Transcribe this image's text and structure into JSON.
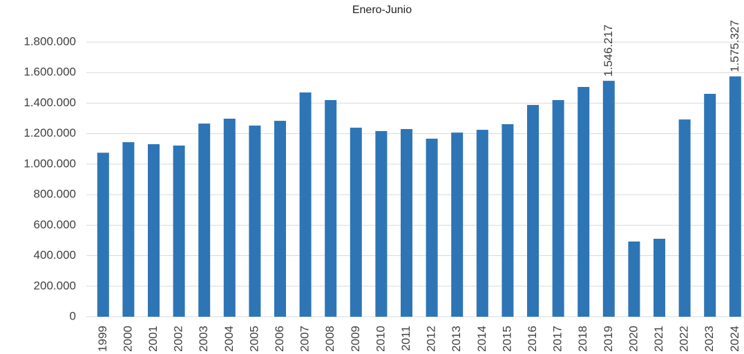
{
  "chart_data": {
    "type": "bar",
    "title": "Enero-Junio",
    "categories": [
      "1999",
      "2000",
      "2001",
      "2002",
      "2003",
      "2004",
      "2005",
      "2006",
      "2007",
      "2008",
      "2009",
      "2010",
      "2011",
      "2012",
      "2013",
      "2014",
      "2015",
      "2016",
      "2017",
      "2018",
      "2019",
      "2020",
      "2021",
      "2022",
      "2023",
      "2024"
    ],
    "values": [
      1075000,
      1144000,
      1131000,
      1122000,
      1266000,
      1298000,
      1253000,
      1284000,
      1470000,
      1420000,
      1239000,
      1217000,
      1230000,
      1167000,
      1207000,
      1225000,
      1262000,
      1388000,
      1420000,
      1506000,
      1546217,
      493000,
      511000,
      1293000,
      1461000,
      1575327
    ],
    "value_labels": [
      null,
      null,
      null,
      null,
      null,
      null,
      null,
      null,
      null,
      null,
      null,
      null,
      null,
      null,
      null,
      null,
      null,
      null,
      null,
      null,
      "1.546.217",
      null,
      null,
      null,
      null,
      "1.575.327"
    ],
    "color": "#2e75b6",
    "ylim": [
      0,
      1800000
    ],
    "yticks": [
      0,
      {
        "value": 200000,
        "label": "200.000"
      },
      {
        "value": 400000,
        "label": "400.000"
      },
      {
        "value": 600000,
        "label": "600.000"
      },
      {
        "value": 800000,
        "label": "800.000"
      },
      {
        "value": 1000000,
        "label": "1.000.000"
      },
      {
        "value": 1200000,
        "label": "1.200.000"
      },
      {
        "value": 1400000,
        "label": "1.400.000"
      },
      {
        "value": 1600000,
        "label": "1.600.000"
      },
      {
        "value": 1800000,
        "label": "1.800.000"
      }
    ],
    "grid": true
  }
}
